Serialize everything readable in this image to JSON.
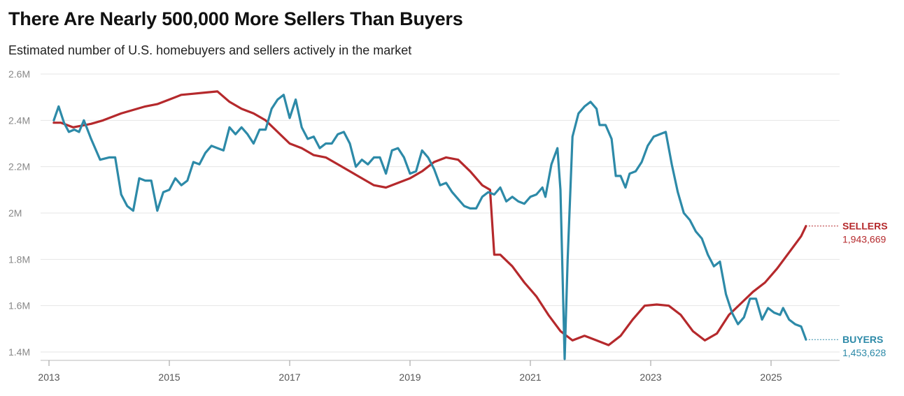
{
  "header": {
    "title": "There Are Nearly 500,000 More Sellers Than Buyers",
    "subtitle": "Estimated number of U.S. homebuyers and sellers actively in the market"
  },
  "chart_data": {
    "type": "line",
    "x_range": [
      2013.0,
      2026.2
    ],
    "ylim": [
      1400000,
      2600000
    ],
    "y_ticks": [
      {
        "value": 1400000,
        "label": "1.4M"
      },
      {
        "value": 1600000,
        "label": "1.6M"
      },
      {
        "value": 1800000,
        "label": "1.8M"
      },
      {
        "value": 2000000,
        "label": "2M"
      },
      {
        "value": 2200000,
        "label": "2.2M"
      },
      {
        "value": 2400000,
        "label": "2.4M"
      },
      {
        "value": 2600000,
        "label": "2.6M"
      }
    ],
    "x_ticks": [
      {
        "value": 2013,
        "label": "2013"
      },
      {
        "value": 2015,
        "label": "2015"
      },
      {
        "value": 2017,
        "label": "2017"
      },
      {
        "value": 2019,
        "label": "2019"
      },
      {
        "value": 2021,
        "label": "2021"
      },
      {
        "value": 2023,
        "label": "2023"
      },
      {
        "value": 2025,
        "label": "2025"
      }
    ],
    "grid": true,
    "series": [
      {
        "name": "SELLERS",
        "end_label": "1,943,669",
        "color": "#b5292c",
        "points": [
          [
            2013.08,
            2390000
          ],
          [
            2013.2,
            2390000
          ],
          [
            2013.4,
            2370000
          ],
          [
            2013.7,
            2385000
          ],
          [
            2013.9,
            2400000
          ],
          [
            2014.2,
            2430000
          ],
          [
            2014.4,
            2445000
          ],
          [
            2014.6,
            2460000
          ],
          [
            2014.8,
            2470000
          ],
          [
            2015.0,
            2490000
          ],
          [
            2015.2,
            2510000
          ],
          [
            2015.4,
            2515000
          ],
          [
            2015.6,
            2520000
          ],
          [
            2015.8,
            2525000
          ],
          [
            2016.0,
            2480000
          ],
          [
            2016.2,
            2450000
          ],
          [
            2016.4,
            2430000
          ],
          [
            2016.6,
            2400000
          ],
          [
            2016.8,
            2350000
          ],
          [
            2017.0,
            2300000
          ],
          [
            2017.2,
            2280000
          ],
          [
            2017.4,
            2250000
          ],
          [
            2017.6,
            2240000
          ],
          [
            2017.8,
            2210000
          ],
          [
            2018.0,
            2180000
          ],
          [
            2018.2,
            2150000
          ],
          [
            2018.4,
            2120000
          ],
          [
            2018.6,
            2110000
          ],
          [
            2018.8,
            2130000
          ],
          [
            2019.0,
            2150000
          ],
          [
            2019.2,
            2180000
          ],
          [
            2019.4,
            2220000
          ],
          [
            2019.6,
            2240000
          ],
          [
            2019.8,
            2230000
          ],
          [
            2020.0,
            2180000
          ],
          [
            2020.2,
            2120000
          ],
          [
            2020.33,
            2100000
          ],
          [
            2020.4,
            1820000
          ],
          [
            2020.5,
            1820000
          ],
          [
            2020.7,
            1770000
          ],
          [
            2020.9,
            1700000
          ],
          [
            2021.1,
            1640000
          ],
          [
            2021.3,
            1560000
          ],
          [
            2021.5,
            1490000
          ],
          [
            2021.7,
            1450000
          ],
          [
            2021.9,
            1470000
          ],
          [
            2022.1,
            1450000
          ],
          [
            2022.3,
            1430000
          ],
          [
            2022.5,
            1470000
          ],
          [
            2022.7,
            1540000
          ],
          [
            2022.9,
            1600000
          ],
          [
            2023.1,
            1605000
          ],
          [
            2023.3,
            1600000
          ],
          [
            2023.5,
            1560000
          ],
          [
            2023.7,
            1490000
          ],
          [
            2023.9,
            1450000
          ],
          [
            2024.1,
            1480000
          ],
          [
            2024.3,
            1560000
          ],
          [
            2024.5,
            1610000
          ],
          [
            2024.7,
            1660000
          ],
          [
            2024.9,
            1700000
          ],
          [
            2025.1,
            1760000
          ],
          [
            2025.3,
            1830000
          ],
          [
            2025.5,
            1900000
          ],
          [
            2025.58,
            1943669
          ]
        ]
      },
      {
        "name": "BUYERS",
        "end_label": "1,453,628",
        "color": "#2d8aa8",
        "points": [
          [
            2013.08,
            2400000
          ],
          [
            2013.16,
            2460000
          ],
          [
            2013.25,
            2390000
          ],
          [
            2013.33,
            2350000
          ],
          [
            2013.42,
            2360000
          ],
          [
            2013.5,
            2350000
          ],
          [
            2013.58,
            2400000
          ],
          [
            2013.7,
            2320000
          ],
          [
            2013.85,
            2230000
          ],
          [
            2014.0,
            2240000
          ],
          [
            2014.1,
            2240000
          ],
          [
            2014.2,
            2080000
          ],
          [
            2014.3,
            2030000
          ],
          [
            2014.4,
            2010000
          ],
          [
            2014.5,
            2150000
          ],
          [
            2014.6,
            2140000
          ],
          [
            2014.7,
            2140000
          ],
          [
            2014.8,
            2010000
          ],
          [
            2014.9,
            2090000
          ],
          [
            2015.0,
            2100000
          ],
          [
            2015.1,
            2150000
          ],
          [
            2015.2,
            2120000
          ],
          [
            2015.3,
            2140000
          ],
          [
            2015.4,
            2220000
          ],
          [
            2015.5,
            2210000
          ],
          [
            2015.6,
            2260000
          ],
          [
            2015.7,
            2290000
          ],
          [
            2015.8,
            2280000
          ],
          [
            2015.9,
            2270000
          ],
          [
            2016.0,
            2370000
          ],
          [
            2016.1,
            2340000
          ],
          [
            2016.2,
            2370000
          ],
          [
            2016.3,
            2340000
          ],
          [
            2016.4,
            2300000
          ],
          [
            2016.5,
            2360000
          ],
          [
            2016.6,
            2360000
          ],
          [
            2016.7,
            2450000
          ],
          [
            2016.8,
            2490000
          ],
          [
            2016.9,
            2510000
          ],
          [
            2017.0,
            2410000
          ],
          [
            2017.1,
            2490000
          ],
          [
            2017.2,
            2370000
          ],
          [
            2017.3,
            2320000
          ],
          [
            2017.4,
            2330000
          ],
          [
            2017.5,
            2280000
          ],
          [
            2017.6,
            2300000
          ],
          [
            2017.7,
            2300000
          ],
          [
            2017.8,
            2340000
          ],
          [
            2017.9,
            2350000
          ],
          [
            2018.0,
            2300000
          ],
          [
            2018.1,
            2200000
          ],
          [
            2018.2,
            2230000
          ],
          [
            2018.3,
            2210000
          ],
          [
            2018.4,
            2240000
          ],
          [
            2018.5,
            2240000
          ],
          [
            2018.6,
            2170000
          ],
          [
            2018.7,
            2270000
          ],
          [
            2018.8,
            2280000
          ],
          [
            2018.9,
            2240000
          ],
          [
            2019.0,
            2170000
          ],
          [
            2019.1,
            2180000
          ],
          [
            2019.2,
            2270000
          ],
          [
            2019.3,
            2240000
          ],
          [
            2019.4,
            2190000
          ],
          [
            2019.5,
            2120000
          ],
          [
            2019.6,
            2130000
          ],
          [
            2019.7,
            2090000
          ],
          [
            2019.8,
            2060000
          ],
          [
            2019.9,
            2030000
          ],
          [
            2020.0,
            2020000
          ],
          [
            2020.1,
            2020000
          ],
          [
            2020.2,
            2070000
          ],
          [
            2020.3,
            2090000
          ],
          [
            2020.4,
            2080000
          ],
          [
            2020.5,
            2110000
          ],
          [
            2020.6,
            2050000
          ],
          [
            2020.7,
            2070000
          ],
          [
            2020.8,
            2050000
          ],
          [
            2020.9,
            2040000
          ],
          [
            2021.0,
            2070000
          ],
          [
            2021.1,
            2080000
          ],
          [
            2021.2,
            2110000
          ],
          [
            2021.25,
            2070000
          ],
          [
            2021.35,
            2210000
          ],
          [
            2021.45,
            2280000
          ],
          [
            2021.5,
            2100000
          ],
          [
            2021.57,
            1370000
          ],
          [
            2021.62,
            1800000
          ],
          [
            2021.7,
            2330000
          ],
          [
            2021.8,
            2430000
          ],
          [
            2021.9,
            2460000
          ],
          [
            2022.0,
            2480000
          ],
          [
            2022.1,
            2450000
          ],
          [
            2022.15,
            2380000
          ],
          [
            2022.25,
            2380000
          ],
          [
            2022.35,
            2320000
          ],
          [
            2022.42,
            2160000
          ],
          [
            2022.5,
            2160000
          ],
          [
            2022.58,
            2110000
          ],
          [
            2022.65,
            2170000
          ],
          [
            2022.75,
            2180000
          ],
          [
            2022.85,
            2220000
          ],
          [
            2022.95,
            2290000
          ],
          [
            2023.05,
            2330000
          ],
          [
            2023.15,
            2340000
          ],
          [
            2023.25,
            2350000
          ],
          [
            2023.35,
            2210000
          ],
          [
            2023.45,
            2090000
          ],
          [
            2023.55,
            2000000
          ],
          [
            2023.65,
            1970000
          ],
          [
            2023.75,
            1920000
          ],
          [
            2023.85,
            1890000
          ],
          [
            2023.95,
            1820000
          ],
          [
            2024.05,
            1770000
          ],
          [
            2024.15,
            1790000
          ],
          [
            2024.25,
            1650000
          ],
          [
            2024.35,
            1570000
          ],
          [
            2024.45,
            1520000
          ],
          [
            2024.55,
            1550000
          ],
          [
            2024.65,
            1630000
          ],
          [
            2024.75,
            1630000
          ],
          [
            2024.85,
            1540000
          ],
          [
            2024.95,
            1590000
          ],
          [
            2025.05,
            1570000
          ],
          [
            2025.15,
            1560000
          ],
          [
            2025.2,
            1590000
          ],
          [
            2025.3,
            1540000
          ],
          [
            2025.4,
            1520000
          ],
          [
            2025.5,
            1510000
          ],
          [
            2025.58,
            1453628
          ]
        ]
      }
    ]
  }
}
